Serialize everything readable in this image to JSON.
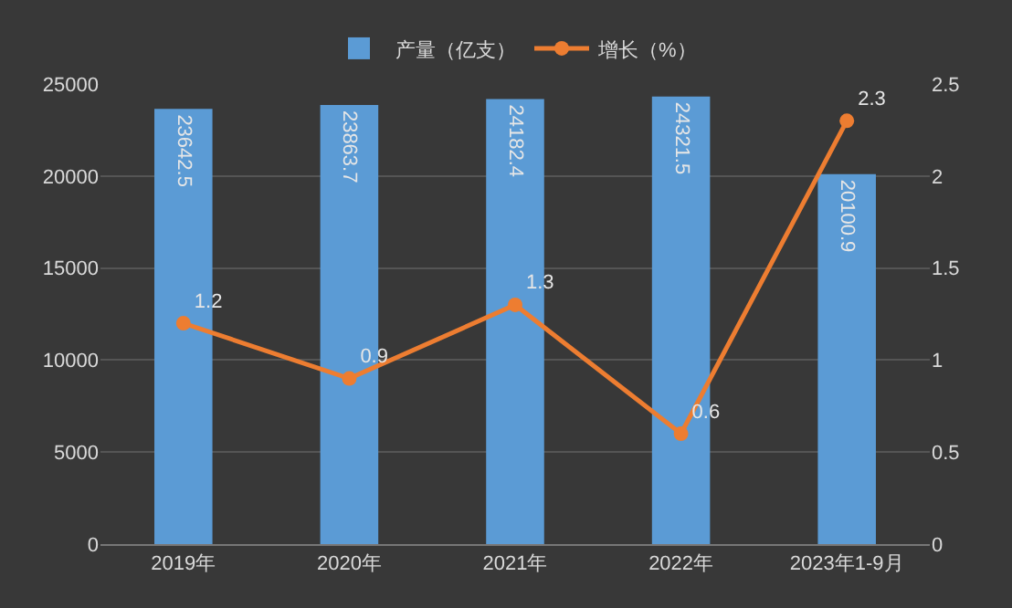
{
  "chart_data": {
    "type": "bar",
    "categories": [
      "2019年",
      "2020年",
      "2021年",
      "2022年",
      "2023年1-9月"
    ],
    "series": [
      {
        "name": "产量（亿支）",
        "color": "#5b9bd5",
        "values": [
          23642.5,
          23863.7,
          24182.4,
          24321.5,
          20100.9
        ]
      },
      {
        "name": "增长（%）",
        "type": "line",
        "axis": "y2",
        "color": "#ed7d31",
        "values": [
          1.2,
          0.9,
          1.3,
          0.6,
          2.3
        ]
      }
    ],
    "ylim": [
      0,
      25000
    ],
    "yticks": [
      0,
      5000,
      10000,
      15000,
      20000,
      25000
    ],
    "y2lim": [
      0,
      2.5
    ],
    "y2ticks": [
      0,
      0.5,
      1,
      1.5,
      2,
      2.5
    ],
    "grid": "y",
    "legend": "top",
    "marker": "circle",
    "line_style": "solid",
    "data_labels": true
  }
}
